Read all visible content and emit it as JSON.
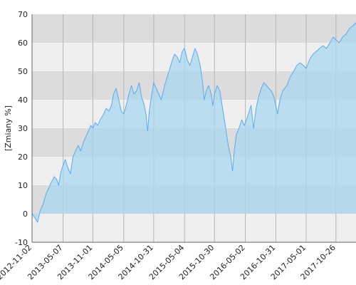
{
  "chart_data": {
    "type": "area",
    "title": "",
    "xlabel": "",
    "ylabel": "[Zmiany %]",
    "ylim": [
      -10,
      70
    ],
    "xlim": [
      "2012-11-02",
      "2018-02-23"
    ],
    "y_ticks": [
      -10,
      0,
      10,
      20,
      30,
      40,
      50,
      60,
      70
    ],
    "x_ticks": [
      "2012-11-02",
      "2013-05-07",
      "2013-11-01",
      "2014-05-05",
      "2014-10-31",
      "2015-05-04",
      "2015-10-30",
      "2016-05-02",
      "2016-10-31",
      "2017-05-01",
      "2017-10-26"
    ],
    "grid": "vertical lines at x ticks, alternating horizontal bands",
    "colors": {
      "line": "#5aaaf0",
      "fill": "#a8d8ef",
      "fill_opacity": 0.75,
      "band_dark": "#dcdcdc",
      "band_light": "#efefef",
      "grid_line": "#b4b4b4",
      "axis": "#666666"
    },
    "series": [
      {
        "points": [
          [
            "2012-11-02",
            0
          ],
          [
            "2012-11-20",
            -1.5
          ],
          [
            "2012-12-05",
            -3
          ],
          [
            "2012-12-20",
            1
          ],
          [
            "2013-01-05",
            3
          ],
          [
            "2013-01-25",
            7
          ],
          [
            "2013-02-10",
            9
          ],
          [
            "2013-02-25",
            11
          ],
          [
            "2013-03-15",
            13
          ],
          [
            "2013-03-30",
            12
          ],
          [
            "2013-04-10",
            10
          ],
          [
            "2013-04-25",
            15
          ],
          [
            "2013-05-07",
            17
          ],
          [
            "2013-05-20",
            19
          ],
          [
            "2013-06-05",
            16
          ],
          [
            "2013-06-20",
            14
          ],
          [
            "2013-07-05",
            20
          ],
          [
            "2013-07-20",
            22
          ],
          [
            "2013-08-05",
            24
          ],
          [
            "2013-08-20",
            22
          ],
          [
            "2013-09-05",
            25
          ],
          [
            "2013-09-20",
            27
          ],
          [
            "2013-10-05",
            29
          ],
          [
            "2013-10-20",
            31
          ],
          [
            "2013-11-01",
            30
          ],
          [
            "2013-11-15",
            32
          ],
          [
            "2013-12-01",
            31
          ],
          [
            "2013-12-15",
            33
          ],
          [
            "2014-01-05",
            35
          ],
          [
            "2014-01-20",
            37
          ],
          [
            "2014-02-05",
            36
          ],
          [
            "2014-02-20",
            38
          ],
          [
            "2014-03-05",
            42
          ],
          [
            "2014-03-20",
            44
          ],
          [
            "2014-04-05",
            40
          ],
          [
            "2014-04-20",
            36
          ],
          [
            "2014-05-05",
            35
          ],
          [
            "2014-05-20",
            38
          ],
          [
            "2014-06-05",
            42
          ],
          [
            "2014-06-20",
            45
          ],
          [
            "2014-07-05",
            42
          ],
          [
            "2014-07-20",
            43
          ],
          [
            "2014-08-05",
            46
          ],
          [
            "2014-08-20",
            41
          ],
          [
            "2014-09-05",
            38
          ],
          [
            "2014-09-15",
            35
          ],
          [
            "2014-09-25",
            29
          ],
          [
            "2014-10-05",
            36
          ],
          [
            "2014-10-20",
            42
          ],
          [
            "2014-10-31",
            46
          ],
          [
            "2014-11-15",
            44
          ],
          [
            "2014-12-01",
            42
          ],
          [
            "2014-12-15",
            40
          ],
          [
            "2015-01-05",
            45
          ],
          [
            "2015-01-20",
            48
          ],
          [
            "2015-02-05",
            51
          ],
          [
            "2015-02-20",
            54
          ],
          [
            "2015-03-05",
            56
          ],
          [
            "2015-03-20",
            55
          ],
          [
            "2015-04-05",
            53
          ],
          [
            "2015-04-20",
            57
          ],
          [
            "2015-05-04",
            58
          ],
          [
            "2015-05-20",
            54
          ],
          [
            "2015-06-05",
            52
          ],
          [
            "2015-06-20",
            55
          ],
          [
            "2015-07-05",
            58
          ],
          [
            "2015-07-20",
            56
          ],
          [
            "2015-08-05",
            52
          ],
          [
            "2015-08-20",
            46
          ],
          [
            "2015-08-30",
            40
          ],
          [
            "2015-09-10",
            43
          ],
          [
            "2015-09-25",
            45
          ],
          [
            "2015-10-10",
            42
          ],
          [
            "2015-10-20",
            38
          ],
          [
            "2015-10-30",
            42
          ],
          [
            "2015-11-15",
            45
          ],
          [
            "2015-12-01",
            43
          ],
          [
            "2015-12-15",
            38
          ],
          [
            "2016-01-05",
            30
          ],
          [
            "2016-01-20",
            24
          ],
          [
            "2016-02-05",
            20
          ],
          [
            "2016-02-15",
            15
          ],
          [
            "2016-02-25",
            22
          ],
          [
            "2016-03-10",
            28
          ],
          [
            "2016-03-25",
            30
          ],
          [
            "2016-04-10",
            33
          ],
          [
            "2016-04-25",
            31
          ],
          [
            "2016-05-02",
            32
          ],
          [
            "2016-05-20",
            35
          ],
          [
            "2016-06-05",
            38
          ],
          [
            "2016-06-20",
            30
          ],
          [
            "2016-07-05",
            37
          ],
          [
            "2016-07-20",
            41
          ],
          [
            "2016-08-05",
            44
          ],
          [
            "2016-08-20",
            46
          ],
          [
            "2016-09-05",
            45
          ],
          [
            "2016-09-20",
            44
          ],
          [
            "2016-10-05",
            43
          ],
          [
            "2016-10-20",
            41
          ],
          [
            "2016-10-31",
            38
          ],
          [
            "2016-11-10",
            35
          ],
          [
            "2016-11-25",
            40
          ],
          [
            "2016-12-10",
            43
          ],
          [
            "2017-01-05",
            45
          ],
          [
            "2017-01-25",
            48
          ],
          [
            "2017-02-15",
            50
          ],
          [
            "2017-03-05",
            52
          ],
          [
            "2017-03-25",
            53
          ],
          [
            "2017-04-15",
            52
          ],
          [
            "2017-05-01",
            51
          ],
          [
            "2017-05-20",
            54
          ],
          [
            "2017-06-10",
            56
          ],
          [
            "2017-07-01",
            57
          ],
          [
            "2017-07-20",
            58
          ],
          [
            "2017-08-10",
            59
          ],
          [
            "2017-08-30",
            58
          ],
          [
            "2017-09-20",
            60
          ],
          [
            "2017-10-10",
            62
          ],
          [
            "2017-10-26",
            61
          ],
          [
            "2017-11-15",
            60
          ],
          [
            "2017-12-05",
            62
          ],
          [
            "2017-12-25",
            63
          ],
          [
            "2018-01-15",
            65
          ],
          [
            "2018-02-05",
            66
          ],
          [
            "2018-02-23",
            67
          ]
        ]
      }
    ]
  }
}
